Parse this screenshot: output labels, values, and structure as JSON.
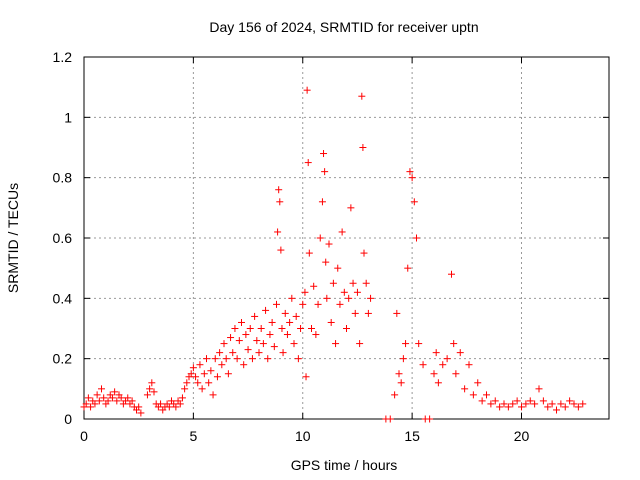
{
  "chart_data": {
    "type": "scatter",
    "title": "Day 156 of 2024, SRMTID for receiver uptn",
    "xlabel": "GPS time / hours",
    "ylabel": "SRMTID / TECUs",
    "xlim": [
      0,
      24
    ],
    "ylim": [
      0,
      1.2
    ],
    "x_ticks": [
      0,
      5,
      10,
      15,
      20
    ],
    "x_tick_labels": [
      "0",
      "5",
      "10",
      "15",
      "20"
    ],
    "y_ticks": [
      0,
      0.2,
      0.4,
      0.6,
      0.8,
      1,
      1.2
    ],
    "y_tick_labels": [
      "0",
      "0.2",
      "0.4",
      "0.6",
      "0.8",
      "1",
      "1.2"
    ],
    "grid": true,
    "marker": "plus",
    "color": "#ff0000",
    "series": [
      {
        "name": "SRMTID",
        "points": [
          [
            0.0,
            0.04
          ],
          [
            0.1,
            0.05
          ],
          [
            0.2,
            0.07
          ],
          [
            0.3,
            0.04
          ],
          [
            0.4,
            0.06
          ],
          [
            0.5,
            0.05
          ],
          [
            0.6,
            0.08
          ],
          [
            0.7,
            0.06
          ],
          [
            0.8,
            0.1
          ],
          [
            0.9,
            0.07
          ],
          [
            1.0,
            0.05
          ],
          [
            1.1,
            0.06
          ],
          [
            1.2,
            0.08
          ],
          [
            1.3,
            0.07
          ],
          [
            1.4,
            0.09
          ],
          [
            1.5,
            0.06
          ],
          [
            1.6,
            0.08
          ],
          [
            1.7,
            0.07
          ],
          [
            1.8,
            0.05
          ],
          [
            1.9,
            0.06
          ],
          [
            2.0,
            0.07
          ],
          [
            2.1,
            0.05
          ],
          [
            2.2,
            0.06
          ],
          [
            2.3,
            0.04
          ],
          [
            2.4,
            0.03
          ],
          [
            2.5,
            0.04
          ],
          [
            2.6,
            0.02
          ],
          [
            2.9,
            0.08
          ],
          [
            3.0,
            0.1
          ],
          [
            3.1,
            0.12
          ],
          [
            3.2,
            0.09
          ],
          [
            3.3,
            0.05
          ],
          [
            3.4,
            0.04
          ],
          [
            3.5,
            0.05
          ],
          [
            3.6,
            0.03
          ],
          [
            3.7,
            0.04
          ],
          [
            3.8,
            0.05
          ],
          [
            3.9,
            0.04
          ],
          [
            4.0,
            0.06
          ],
          [
            4.1,
            0.05
          ],
          [
            4.2,
            0.04
          ],
          [
            4.3,
            0.06
          ],
          [
            4.4,
            0.05
          ],
          [
            4.5,
            0.07
          ],
          [
            4.6,
            0.1
          ],
          [
            4.7,
            0.12
          ],
          [
            4.8,
            0.14
          ],
          [
            4.9,
            0.15
          ],
          [
            5.0,
            0.17
          ],
          [
            5.1,
            0.14
          ],
          [
            5.2,
            0.12
          ],
          [
            5.3,
            0.18
          ],
          [
            5.4,
            0.1
          ],
          [
            5.5,
            0.15
          ],
          [
            5.6,
            0.2
          ],
          [
            5.7,
            0.12
          ],
          [
            5.8,
            0.16
          ],
          [
            5.9,
            0.08
          ],
          [
            6.0,
            0.2
          ],
          [
            6.1,
            0.14
          ],
          [
            6.2,
            0.22
          ],
          [
            6.3,
            0.18
          ],
          [
            6.4,
            0.25
          ],
          [
            6.5,
            0.2
          ],
          [
            6.6,
            0.15
          ],
          [
            6.7,
            0.27
          ],
          [
            6.8,
            0.22
          ],
          [
            6.9,
            0.3
          ],
          [
            7.0,
            0.2
          ],
          [
            7.1,
            0.26
          ],
          [
            7.2,
            0.32
          ],
          [
            7.3,
            0.18
          ],
          [
            7.4,
            0.28
          ],
          [
            7.5,
            0.23
          ],
          [
            7.6,
            0.3
          ],
          [
            7.7,
            0.2
          ],
          [
            7.8,
            0.34
          ],
          [
            7.9,
            0.26
          ],
          [
            8.0,
            0.22
          ],
          [
            8.1,
            0.3
          ],
          [
            8.2,
            0.25
          ],
          [
            8.3,
            0.36
          ],
          [
            8.4,
            0.2
          ],
          [
            8.5,
            0.28
          ],
          [
            8.6,
            0.32
          ],
          [
            8.7,
            0.24
          ],
          [
            8.8,
            0.38
          ],
          [
            8.85,
            0.62
          ],
          [
            8.9,
            0.76
          ],
          [
            8.95,
            0.72
          ],
          [
            9.0,
            0.56
          ],
          [
            9.05,
            0.3
          ],
          [
            9.1,
            0.22
          ],
          [
            9.2,
            0.35
          ],
          [
            9.3,
            0.28
          ],
          [
            9.4,
            0.32
          ],
          [
            9.5,
            0.4
          ],
          [
            9.6,
            0.25
          ],
          [
            9.7,
            0.34
          ],
          [
            9.8,
            0.2
          ],
          [
            9.9,
            0.3
          ],
          [
            10.0,
            0.38
          ],
          [
            10.1,
            0.42
          ],
          [
            10.15,
            0.14
          ],
          [
            10.2,
            1.09
          ],
          [
            10.25,
            0.85
          ],
          [
            10.3,
            0.55
          ],
          [
            10.4,
            0.3
          ],
          [
            10.5,
            0.44
          ],
          [
            10.6,
            0.28
          ],
          [
            10.7,
            0.38
          ],
          [
            10.8,
            0.6
          ],
          [
            10.9,
            0.72
          ],
          [
            10.95,
            0.88
          ],
          [
            11.0,
            0.82
          ],
          [
            11.05,
            0.52
          ],
          [
            11.1,
            0.4
          ],
          [
            11.2,
            0.58
          ],
          [
            11.3,
            0.32
          ],
          [
            11.4,
            0.45
          ],
          [
            11.5,
            0.25
          ],
          [
            11.6,
            0.5
          ],
          [
            11.7,
            0.38
          ],
          [
            11.8,
            0.62
          ],
          [
            11.9,
            0.42
          ],
          [
            12.0,
            0.3
          ],
          [
            12.1,
            0.4
          ],
          [
            12.2,
            0.7
          ],
          [
            12.3,
            0.45
          ],
          [
            12.4,
            0.35
          ],
          [
            12.5,
            0.42
          ],
          [
            12.6,
            0.25
          ],
          [
            12.7,
            1.07
          ],
          [
            12.75,
            0.9
          ],
          [
            12.8,
            0.55
          ],
          [
            12.9,
            0.45
          ],
          [
            13.0,
            0.35
          ],
          [
            13.1,
            0.4
          ],
          [
            13.8,
            0.0
          ],
          [
            14.0,
            0.0
          ],
          [
            14.2,
            0.08
          ],
          [
            14.3,
            0.35
          ],
          [
            14.4,
            0.15
          ],
          [
            14.5,
            0.12
          ],
          [
            14.6,
            0.2
          ],
          [
            14.7,
            0.25
          ],
          [
            14.8,
            0.5
          ],
          [
            14.9,
            0.82
          ],
          [
            15.0,
            0.8
          ],
          [
            15.1,
            0.72
          ],
          [
            15.2,
            0.6
          ],
          [
            15.3,
            0.25
          ],
          [
            15.5,
            0.18
          ],
          [
            15.6,
            0.0
          ],
          [
            15.8,
            0.0
          ],
          [
            16.0,
            0.15
          ],
          [
            16.1,
            0.22
          ],
          [
            16.2,
            0.12
          ],
          [
            16.4,
            0.18
          ],
          [
            16.6,
            0.2
          ],
          [
            16.8,
            0.48
          ],
          [
            16.9,
            0.25
          ],
          [
            17.0,
            0.15
          ],
          [
            17.2,
            0.22
          ],
          [
            17.4,
            0.1
          ],
          [
            17.6,
            0.18
          ],
          [
            17.8,
            0.08
          ],
          [
            18.0,
            0.12
          ],
          [
            18.2,
            0.06
          ],
          [
            18.4,
            0.08
          ],
          [
            18.6,
            0.05
          ],
          [
            18.8,
            0.06
          ],
          [
            19.0,
            0.04
          ],
          [
            19.2,
            0.05
          ],
          [
            19.4,
            0.04
          ],
          [
            19.6,
            0.05
          ],
          [
            19.8,
            0.06
          ],
          [
            20.0,
            0.04
          ],
          [
            20.2,
            0.05
          ],
          [
            20.4,
            0.06
          ],
          [
            20.6,
            0.05
          ],
          [
            20.8,
            0.1
          ],
          [
            21.0,
            0.06
          ],
          [
            21.2,
            0.04
          ],
          [
            21.4,
            0.05
          ],
          [
            21.6,
            0.03
          ],
          [
            21.8,
            0.05
          ],
          [
            22.0,
            0.04
          ],
          [
            22.2,
            0.06
          ],
          [
            22.4,
            0.05
          ],
          [
            22.6,
            0.04
          ],
          [
            22.8,
            0.05
          ]
        ]
      }
    ]
  }
}
